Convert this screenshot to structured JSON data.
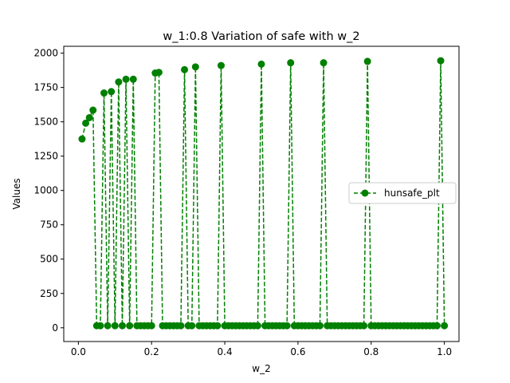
{
  "chart_data": {
    "type": "line",
    "title": "w_1:0.8 Variation of safe with w_2",
    "xlabel": "w_2",
    "ylabel": "Values",
    "xlim": [
      -0.04,
      1.04
    ],
    "ylim": [
      -100,
      2050
    ],
    "xticks": [
      0.0,
      0.2,
      0.4,
      0.6,
      0.8,
      1.0
    ],
    "xtick_labels": [
      "0.0",
      "0.2",
      "0.4",
      "0.6",
      "0.8",
      "1.0"
    ],
    "yticks": [
      0,
      250,
      500,
      750,
      1000,
      1250,
      1500,
      1750,
      2000
    ],
    "ytick_labels": [
      "0",
      "250",
      "500",
      "750",
      "1000",
      "1250",
      "1500",
      "1750",
      "2000"
    ],
    "grid": false,
    "legend_position": "center right",
    "series": [
      {
        "name": "hunsafe_plt",
        "color": "#008000",
        "linestyle": "dashed",
        "marker": "circle",
        "x": [
          0.01,
          0.02,
          0.03,
          0.04,
          0.05,
          0.06,
          0.07,
          0.08,
          0.09,
          0.1,
          0.11,
          0.12,
          0.13,
          0.14,
          0.15,
          0.16,
          0.17,
          0.18,
          0.19,
          0.2,
          0.21,
          0.22,
          0.23,
          0.24,
          0.25,
          0.26,
          0.27,
          0.28,
          0.29,
          0.3,
          0.31,
          0.32,
          0.33,
          0.34,
          0.35,
          0.36,
          0.37,
          0.38,
          0.39,
          0.4,
          0.41,
          0.42,
          0.43,
          0.44,
          0.45,
          0.46,
          0.47,
          0.48,
          0.49,
          0.5,
          0.51,
          0.52,
          0.53,
          0.54,
          0.55,
          0.56,
          0.57,
          0.58,
          0.59,
          0.6,
          0.61,
          0.62,
          0.63,
          0.64,
          0.65,
          0.66,
          0.67,
          0.68,
          0.69,
          0.7,
          0.71,
          0.72,
          0.73,
          0.74,
          0.75,
          0.76,
          0.77,
          0.78,
          0.79,
          0.8,
          0.81,
          0.82,
          0.83,
          0.84,
          0.85,
          0.86,
          0.87,
          0.88,
          0.89,
          0.9,
          0.91,
          0.92,
          0.93,
          0.94,
          0.95,
          0.96,
          0.97,
          0.98,
          0.99,
          1.0
        ],
        "y": [
          1375,
          1490,
          1530,
          1585,
          15,
          15,
          1710,
          15,
          1720,
          15,
          1790,
          15,
          1810,
          15,
          1810,
          15,
          15,
          15,
          15,
          15,
          1855,
          1860,
          15,
          15,
          15,
          15,
          15,
          15,
          1880,
          15,
          15,
          1900,
          15,
          15,
          15,
          15,
          15,
          15,
          1910,
          15,
          15,
          15,
          15,
          15,
          15,
          15,
          15,
          15,
          15,
          1920,
          15,
          15,
          15,
          15,
          15,
          15,
          15,
          1930,
          15,
          15,
          15,
          15,
          15,
          15,
          15,
          15,
          1930,
          15,
          15,
          15,
          15,
          15,
          15,
          15,
          15,
          15,
          15,
          15,
          1940,
          15,
          15,
          15,
          15,
          15,
          15,
          15,
          15,
          15,
          15,
          15,
          15,
          15,
          15,
          15,
          15,
          15,
          15,
          15,
          1945,
          15
        ]
      }
    ]
  }
}
